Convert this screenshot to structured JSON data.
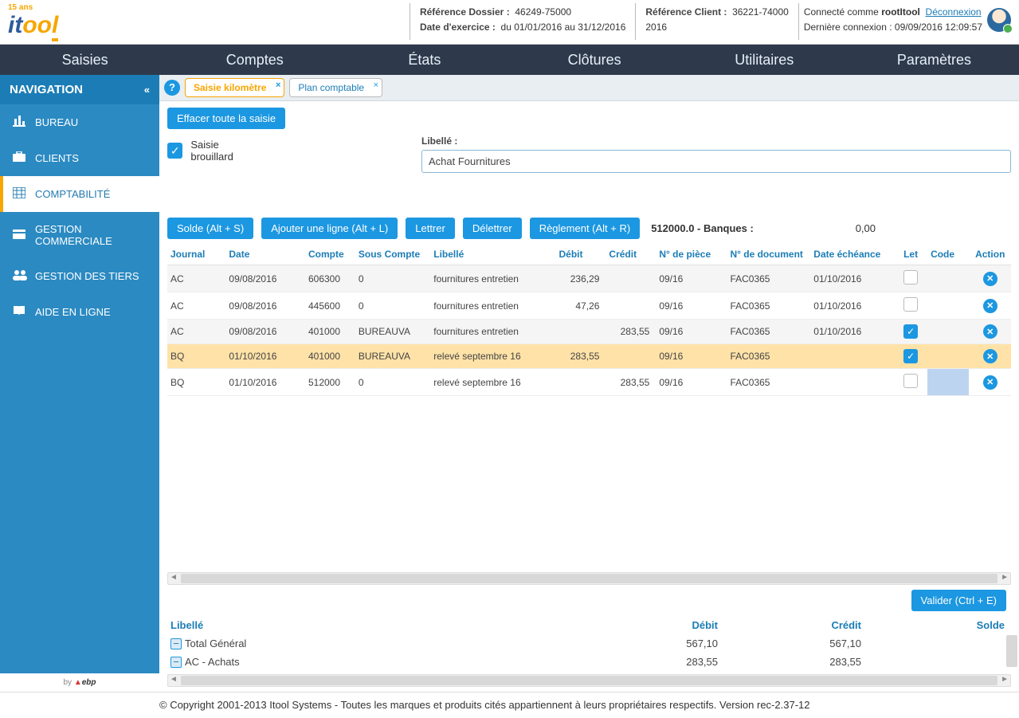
{
  "header": {
    "logo_tag": "15 ans",
    "ref_dossier_label": "Référence Dossier :",
    "ref_dossier_value": "46249-75000",
    "date_exercice_label": "Date d'exercice :",
    "date_exercice_value": "du 01/01/2016 au 31/12/2016",
    "ref_client_label": "Référence Client :",
    "ref_client_value": "36221-74000",
    "ref_client_year": "2016",
    "connected_prefix": "Connecté comme ",
    "connected_user": "rootItool",
    "logout": "Déconnexion",
    "last_login_label": "Dernière connexion : ",
    "last_login_value": "09/09/2016 12:09:57"
  },
  "menubar": [
    "Saisies",
    "Comptes",
    "États",
    "Clôtures",
    "Utilitaires",
    "Paramètres"
  ],
  "sidebar": {
    "title": "NAVIGATION",
    "items": [
      {
        "label": "BUREAU"
      },
      {
        "label": "CLIENTS"
      },
      {
        "label": "COMPTABILITÉ"
      },
      {
        "label": "GESTION COMMERCIALE"
      },
      {
        "label": "GESTION DES TIERS"
      },
      {
        "label": "AIDE EN LIGNE"
      }
    ],
    "by": "by",
    "ebp": "ebp"
  },
  "tabs": [
    {
      "label": "Saisie kilomètre",
      "active": true
    },
    {
      "label": "Plan comptable",
      "active": false
    }
  ],
  "buttons": {
    "effacer": "Effacer toute la saisie",
    "solde": "Solde (Alt + S)",
    "ajouter": "Ajouter une ligne (Alt + L)",
    "lettrer": "Lettrer",
    "delettrer": "Délettrer",
    "reglement": "Règlement (Alt + R)",
    "valider": "Valider (Ctrl + E)"
  },
  "form": {
    "saisie_brouillard": "Saisie brouillard",
    "libelle_label": "Libellé :",
    "libelle_value": "Achat Fournitures"
  },
  "account_line": {
    "text": "512000.0 - Banques :",
    "value": "0,00"
  },
  "grid": {
    "headers": {
      "journal": "Journal",
      "date": "Date",
      "compte": "Compte",
      "souscompte": "Sous Compte",
      "libelle": "Libellé",
      "debit": "Débit",
      "credit": "Crédit",
      "piece": "N° de pièce",
      "document": "N° de document",
      "echeance": "Date échéance",
      "let": "Let",
      "code": "Code",
      "action": "Action"
    },
    "rows": [
      {
        "journal": "AC",
        "date": "09/08/2016",
        "compte": "606300",
        "souscompte": "0",
        "libelle": "fournitures entretien",
        "debit": "236,29",
        "credit": "",
        "piece": "09/16",
        "document": "FAC0365",
        "echeance": "01/10/2016",
        "let": false,
        "hl": false,
        "odd": true
      },
      {
        "journal": "AC",
        "date": "09/08/2016",
        "compte": "445600",
        "souscompte": "0",
        "libelle": "fournitures entretien",
        "debit": "47,26",
        "credit": "",
        "piece": "09/16",
        "document": "FAC0365",
        "echeance": "01/10/2016",
        "let": false,
        "hl": false,
        "odd": false
      },
      {
        "journal": "AC",
        "date": "09/08/2016",
        "compte": "401000",
        "souscompte": "BUREAUVA",
        "libelle": "fournitures entretien",
        "debit": "",
        "credit": "283,55",
        "piece": "09/16",
        "document": "FAC0365",
        "echeance": "01/10/2016",
        "let": true,
        "hl": false,
        "odd": true
      },
      {
        "journal": "BQ",
        "date": "01/10/2016",
        "compte": "401000",
        "souscompte": "BUREAUVA",
        "libelle": "relevé septembre 16",
        "debit": "283,55",
        "credit": "",
        "piece": "09/16",
        "document": "FAC0365",
        "echeance": "",
        "let": true,
        "hl": true,
        "odd": false
      },
      {
        "journal": "BQ",
        "date": "01/10/2016",
        "compte": "512000",
        "souscompte": "0",
        "libelle": "relevé septembre 16",
        "debit": "",
        "credit": "283,55",
        "piece": "09/16",
        "document": "FAC0365",
        "echeance": "",
        "let": false,
        "hl": false,
        "odd": false,
        "codesel": true
      }
    ]
  },
  "summary": {
    "headers": {
      "libelle": "Libellé",
      "debit": "Débit",
      "credit": "Crédit",
      "solde": "Solde"
    },
    "rows": [
      {
        "label": "Total Général",
        "debit": "567,10",
        "credit": "567,10",
        "solde": "",
        "indent": 0
      },
      {
        "label": "AC - Achats",
        "debit": "283,55",
        "credit": "283,55",
        "solde": "",
        "indent": 1
      }
    ]
  },
  "footer": "© Copyright 2001-2013 Itool Systems - Toutes les marques et produits cités appartiennent à leurs propriétaires respectifs. Version rec-2.37-12",
  "colors": {
    "primary": "#1c97e1",
    "sidebar": "#2b8ac2",
    "nav_head": "#1c7db6",
    "menubar": "#2e3a4c",
    "accent": "#f7a600",
    "highlight_row": "#ffe2a8"
  }
}
